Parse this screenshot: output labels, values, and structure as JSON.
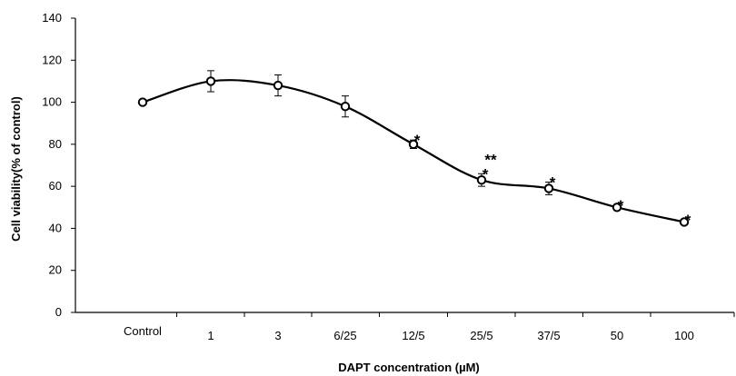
{
  "chart_data": {
    "type": "line",
    "title": "",
    "xlabel": "DAPT concentration (µM)",
    "ylabel": "Cell viability(% of control)",
    "categories": [
      "Control",
      "1",
      "3",
      "6/25",
      "12/5",
      "25/5",
      "37/5",
      "50",
      "100"
    ],
    "ylim": [
      0,
      140
    ],
    "yticks": [
      0,
      20,
      40,
      60,
      80,
      100,
      120,
      140
    ],
    "grid": false,
    "legend": "none",
    "series": [
      {
        "values": [
          100,
          110,
          108,
          98,
          80,
          63,
          59,
          50,
          43
        ],
        "errors": [
          0,
          5,
          5,
          5,
          2,
          3,
          3,
          1,
          1
        ],
        "significance": [
          "",
          "",
          "",
          "",
          "*",
          "**\n*",
          "*",
          "*",
          "*"
        ]
      }
    ],
    "colors": {
      "line": "#000000",
      "marker_fill": "#ffffff",
      "axis": "#000000"
    }
  }
}
